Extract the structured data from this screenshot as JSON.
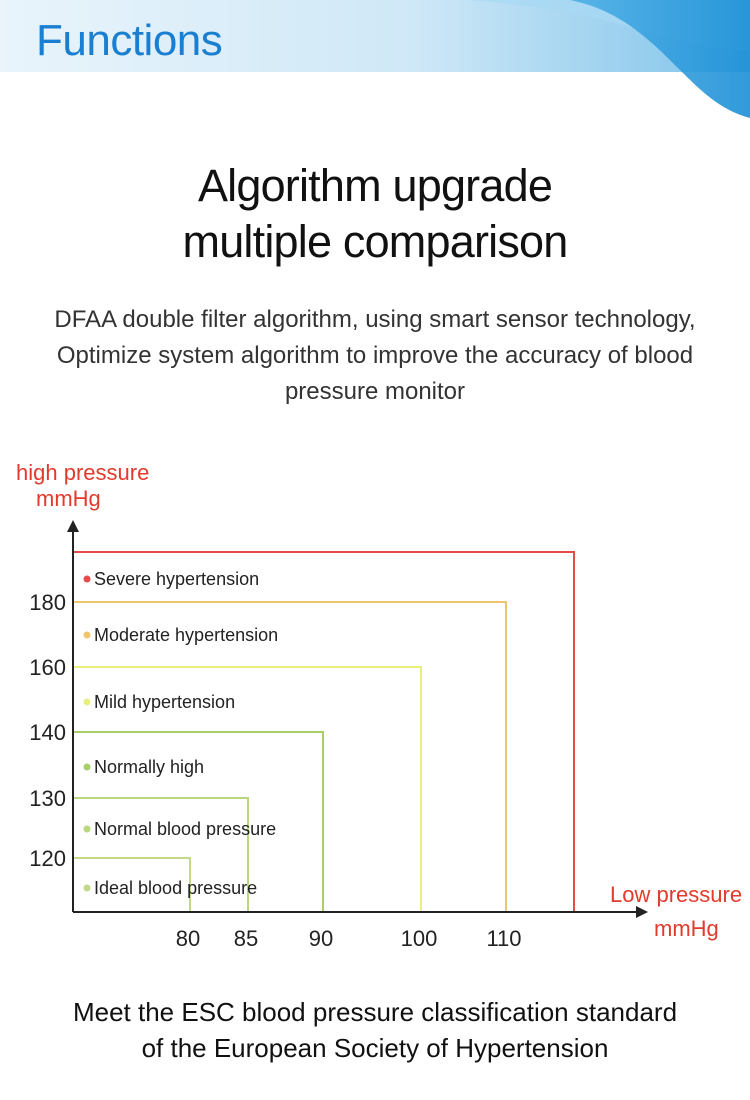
{
  "banner": {
    "title": "Functions"
  },
  "headline": {
    "line1": "Algorithm upgrade",
    "line2": "multiple comparison"
  },
  "description": {
    "line1": "DFAA double filter algorithm, using smart sensor technology,",
    "line2": "Optimize system algorithm to improve the accuracy of blood",
    "line3": "pressure monitor"
  },
  "chart_data": {
    "type": "step-region",
    "y_axis_title": "high pressure",
    "y_axis_unit": "mmHg",
    "x_axis_title": "Low pressure",
    "x_axis_unit": "mmHg",
    "y_ticks": [
      "120",
      "130",
      "140",
      "160",
      "180"
    ],
    "x_ticks": [
      "80",
      "85",
      "90",
      "100",
      "110"
    ],
    "categories": [
      {
        "name": "Ideal blood pressure",
        "systolic_max": 120,
        "diastolic_max": 80,
        "color": "#c2d98a"
      },
      {
        "name": "Normal blood pressure",
        "systolic_max": 130,
        "diastolic_max": 85,
        "color": "#b9d77d"
      },
      {
        "name": "Normally high",
        "systolic_max": 140,
        "diastolic_max": 90,
        "color": "#a8cf6a"
      },
      {
        "name": "Mild hypertension",
        "systolic_max": 160,
        "diastolic_max": 100,
        "color": "#e9ef7c"
      },
      {
        "name": "Moderate hypertension",
        "systolic_max": 180,
        "diastolic_max": 110,
        "color": "#f0c66a"
      },
      {
        "name": "Severe hypertension",
        "systolic_max": null,
        "diastolic_max": null,
        "color": "#e84a4a"
      }
    ],
    "axis_color": "#222222",
    "label_color": "#e23a2c"
  },
  "footer": {
    "line1": "Meet the ESC blood pressure classification standard",
    "line2": "of the European Society of Hypertension"
  }
}
